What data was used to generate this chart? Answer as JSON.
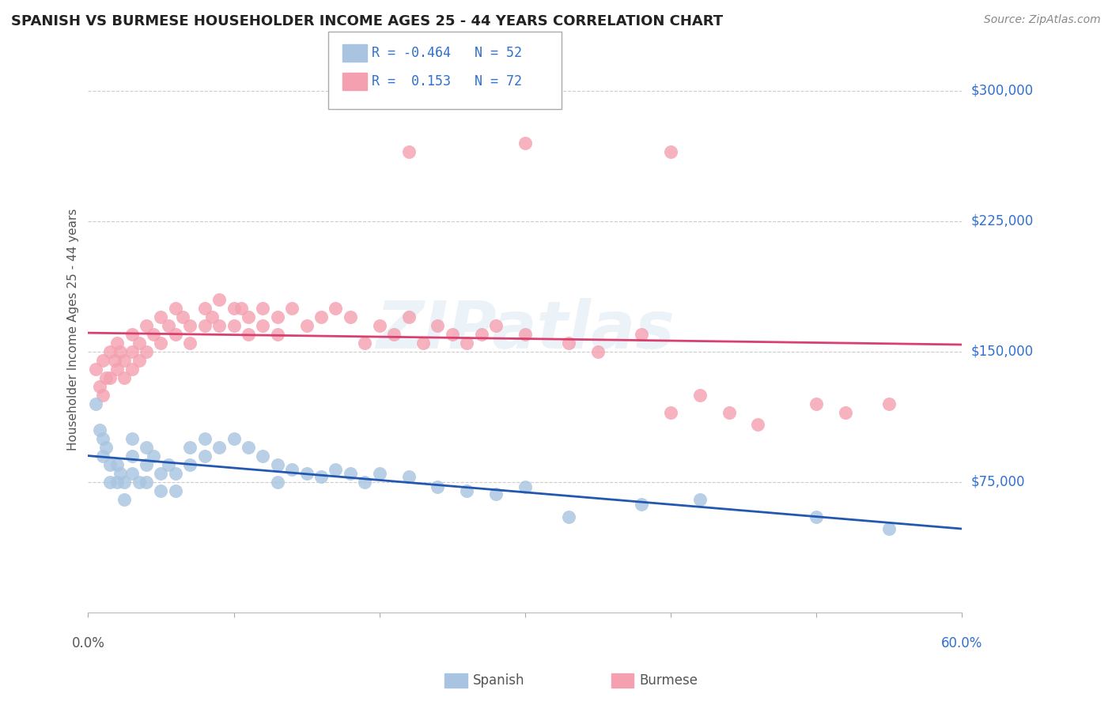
{
  "title": "SPANISH VS BURMESE HOUSEHOLDER INCOME AGES 25 - 44 YEARS CORRELATION CHART",
  "source": "Source: ZipAtlas.com",
  "ylabel": "Householder Income Ages 25 - 44 years",
  "xlim": [
    0.0,
    0.6
  ],
  "ylim": [
    0,
    325000
  ],
  "yticks": [
    0,
    75000,
    150000,
    225000,
    300000
  ],
  "ytick_labels": [
    "",
    "$75,000",
    "$150,000",
    "$225,000",
    "$300,000"
  ],
  "xticks": [
    0.0,
    0.1,
    0.2,
    0.3,
    0.4,
    0.5,
    0.6
  ],
  "spanish_R": -0.464,
  "spanish_N": 52,
  "burmese_R": 0.153,
  "burmese_N": 72,
  "spanish_color": "#a8c4e0",
  "burmese_color": "#f4a0b0",
  "spanish_line_color": "#2258b0",
  "burmese_line_color": "#d84070",
  "legend_border_color": "#aaaaaa",
  "label_color": "#3070d0",
  "text_color": "#555555",
  "watermark": "ZIPatlas",
  "background_color": "#ffffff",
  "grid_color": "#cccccc",
  "spanish_x": [
    0.005,
    0.008,
    0.01,
    0.01,
    0.012,
    0.015,
    0.015,
    0.02,
    0.02,
    0.022,
    0.025,
    0.025,
    0.03,
    0.03,
    0.03,
    0.035,
    0.04,
    0.04,
    0.04,
    0.045,
    0.05,
    0.05,
    0.055,
    0.06,
    0.06,
    0.07,
    0.07,
    0.08,
    0.08,
    0.09,
    0.1,
    0.11,
    0.12,
    0.13,
    0.13,
    0.14,
    0.15,
    0.16,
    0.17,
    0.18,
    0.19,
    0.2,
    0.22,
    0.24,
    0.26,
    0.28,
    0.3,
    0.33,
    0.38,
    0.42,
    0.5,
    0.55
  ],
  "spanish_y": [
    120000,
    105000,
    100000,
    90000,
    95000,
    85000,
    75000,
    85000,
    75000,
    80000,
    75000,
    65000,
    100000,
    90000,
    80000,
    75000,
    95000,
    85000,
    75000,
    90000,
    80000,
    70000,
    85000,
    80000,
    70000,
    95000,
    85000,
    100000,
    90000,
    95000,
    100000,
    95000,
    90000,
    85000,
    75000,
    82000,
    80000,
    78000,
    82000,
    80000,
    75000,
    80000,
    78000,
    72000,
    70000,
    68000,
    72000,
    55000,
    62000,
    65000,
    55000,
    48000
  ],
  "burmese_x": [
    0.005,
    0.008,
    0.01,
    0.01,
    0.012,
    0.015,
    0.015,
    0.018,
    0.02,
    0.02,
    0.022,
    0.025,
    0.025,
    0.03,
    0.03,
    0.03,
    0.035,
    0.035,
    0.04,
    0.04,
    0.045,
    0.05,
    0.05,
    0.055,
    0.06,
    0.06,
    0.065,
    0.07,
    0.07,
    0.08,
    0.08,
    0.085,
    0.09,
    0.09,
    0.1,
    0.1,
    0.105,
    0.11,
    0.11,
    0.12,
    0.12,
    0.13,
    0.13,
    0.14,
    0.15,
    0.16,
    0.17,
    0.18,
    0.19,
    0.2,
    0.21,
    0.22,
    0.23,
    0.24,
    0.25,
    0.26,
    0.27,
    0.28,
    0.3,
    0.33,
    0.35,
    0.38,
    0.4,
    0.42,
    0.44,
    0.46,
    0.5,
    0.52,
    0.55,
    0.22,
    0.3,
    0.4
  ],
  "burmese_y": [
    140000,
    130000,
    145000,
    125000,
    135000,
    150000,
    135000,
    145000,
    155000,
    140000,
    150000,
    145000,
    135000,
    160000,
    150000,
    140000,
    155000,
    145000,
    165000,
    150000,
    160000,
    170000,
    155000,
    165000,
    175000,
    160000,
    170000,
    165000,
    155000,
    175000,
    165000,
    170000,
    180000,
    165000,
    175000,
    165000,
    175000,
    170000,
    160000,
    175000,
    165000,
    170000,
    160000,
    175000,
    165000,
    170000,
    175000,
    170000,
    155000,
    165000,
    160000,
    170000,
    155000,
    165000,
    160000,
    155000,
    160000,
    165000,
    160000,
    155000,
    150000,
    160000,
    115000,
    125000,
    115000,
    108000,
    120000,
    115000,
    120000,
    265000,
    270000,
    265000
  ]
}
